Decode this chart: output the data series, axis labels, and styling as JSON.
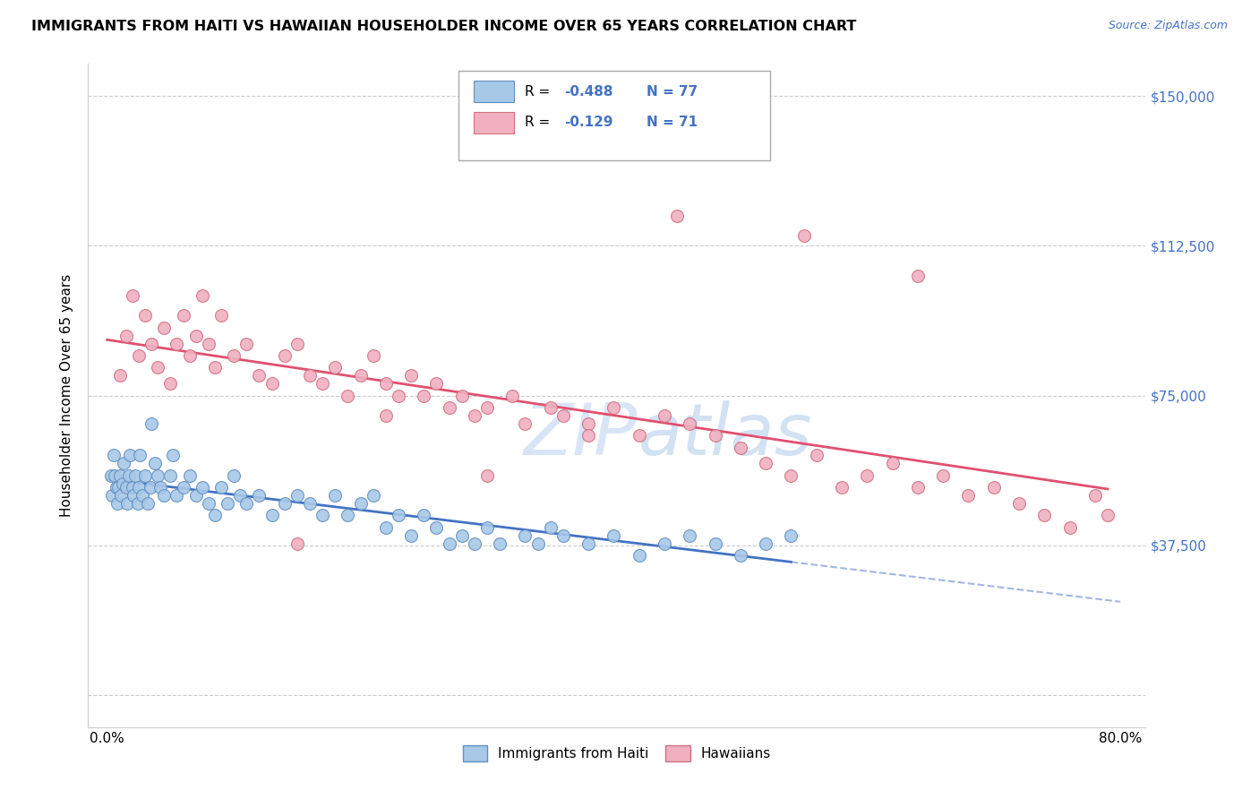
{
  "title": "IMMIGRANTS FROM HAITI VS HAWAIIAN HOUSEHOLDER INCOME OVER 65 YEARS CORRELATION CHART",
  "source": "Source: ZipAtlas.com",
  "ylabel": "Householder Income Over 65 years",
  "legend_label1": "Immigrants from Haiti",
  "legend_label2": "Hawaiians",
  "R1": -0.488,
  "N1": 77,
  "R2": -0.129,
  "N2": 71,
  "ytick_vals": [
    0,
    37500,
    75000,
    112500,
    150000
  ],
  "ytick_labels": [
    "",
    "$37,500",
    "$75,000",
    "$112,500",
    "$150,000"
  ],
  "color_haiti_fill": "#a8c8e8",
  "color_haiti_edge": "#6090c0",
  "color_hawaii_fill": "#f0b0c0",
  "color_hawaii_edge": "#d07080",
  "color_haiti_line": "#4472c4",
  "color_hawaii_line": "#e05070",
  "watermark_zip": "ZIP",
  "watermark_atlas": "atlas",
  "bg_color": "#ffffff",
  "grid_color": "#cccccc",
  "title_fontsize": 11.5,
  "source_fontsize": 9,
  "axis_fontsize": 11,
  "scatter_size": 100,
  "xmin": 0,
  "xmax": 80,
  "ymin": 0,
  "ymax": 150000,
  "haiti_x": [
    0.3,
    0.4,
    0.5,
    0.6,
    0.7,
    0.8,
    0.9,
    1.0,
    1.1,
    1.2,
    1.3,
    1.5,
    1.6,
    1.7,
    1.8,
    2.0,
    2.1,
    2.2,
    2.4,
    2.5,
    2.6,
    2.8,
    3.0,
    3.2,
    3.4,
    3.5,
    3.8,
    4.0,
    4.2,
    4.5,
    5.0,
    5.2,
    5.5,
    6.0,
    6.5,
    7.0,
    7.5,
    8.0,
    8.5,
    9.0,
    9.5,
    10.0,
    10.5,
    11.0,
    12.0,
    13.0,
    14.0,
    15.0,
    16.0,
    17.0,
    18.0,
    19.0,
    20.0,
    21.0,
    22.0,
    23.0,
    24.0,
    25.0,
    26.0,
    27.0,
    28.0,
    29.0,
    30.0,
    31.0,
    33.0,
    34.0,
    35.0,
    36.0,
    38.0,
    40.0,
    42.0,
    44.0,
    46.0,
    48.0,
    50.0,
    52.0,
    54.0
  ],
  "haiti_y": [
    55000,
    50000,
    60000,
    55000,
    52000,
    48000,
    52000,
    55000,
    50000,
    53000,
    58000,
    52000,
    48000,
    55000,
    60000,
    52000,
    50000,
    55000,
    48000,
    52000,
    60000,
    50000,
    55000,
    48000,
    52000,
    68000,
    58000,
    55000,
    52000,
    50000,
    55000,
    60000,
    50000,
    52000,
    55000,
    50000,
    52000,
    48000,
    45000,
    52000,
    48000,
    55000,
    50000,
    48000,
    50000,
    45000,
    48000,
    50000,
    48000,
    45000,
    50000,
    45000,
    48000,
    50000,
    42000,
    45000,
    40000,
    45000,
    42000,
    38000,
    40000,
    38000,
    42000,
    38000,
    40000,
    38000,
    42000,
    40000,
    38000,
    40000,
    35000,
    38000,
    40000,
    38000,
    35000,
    38000,
    40000
  ],
  "hawaii_x": [
    1.0,
    1.5,
    2.0,
    2.5,
    3.0,
    3.5,
    4.0,
    4.5,
    5.0,
    5.5,
    6.0,
    6.5,
    7.0,
    7.5,
    8.0,
    8.5,
    9.0,
    10.0,
    11.0,
    12.0,
    13.0,
    14.0,
    15.0,
    16.0,
    17.0,
    18.0,
    19.0,
    20.0,
    21.0,
    22.0,
    23.0,
    24.0,
    25.0,
    26.0,
    27.0,
    28.0,
    29.0,
    30.0,
    32.0,
    33.0,
    35.0,
    36.0,
    38.0,
    40.0,
    42.0,
    44.0,
    46.0,
    48.0,
    50.0,
    52.0,
    54.0,
    56.0,
    58.0,
    60.0,
    62.0,
    64.0,
    66.0,
    68.0,
    70.0,
    72.0,
    74.0,
    76.0,
    78.0,
    79.0,
    64.0,
    55.0,
    45.0,
    38.0,
    30.0,
    22.0,
    15.0
  ],
  "hawaii_y": [
    80000,
    90000,
    100000,
    85000,
    95000,
    88000,
    82000,
    92000,
    78000,
    88000,
    95000,
    85000,
    90000,
    100000,
    88000,
    82000,
    95000,
    85000,
    88000,
    80000,
    78000,
    85000,
    88000,
    80000,
    78000,
    82000,
    75000,
    80000,
    85000,
    78000,
    75000,
    80000,
    75000,
    78000,
    72000,
    75000,
    70000,
    72000,
    75000,
    68000,
    72000,
    70000,
    68000,
    72000,
    65000,
    70000,
    68000,
    65000,
    62000,
    58000,
    55000,
    60000,
    52000,
    55000,
    58000,
    52000,
    55000,
    50000,
    52000,
    48000,
    45000,
    42000,
    50000,
    45000,
    105000,
    115000,
    120000,
    65000,
    55000,
    70000,
    38000
  ]
}
